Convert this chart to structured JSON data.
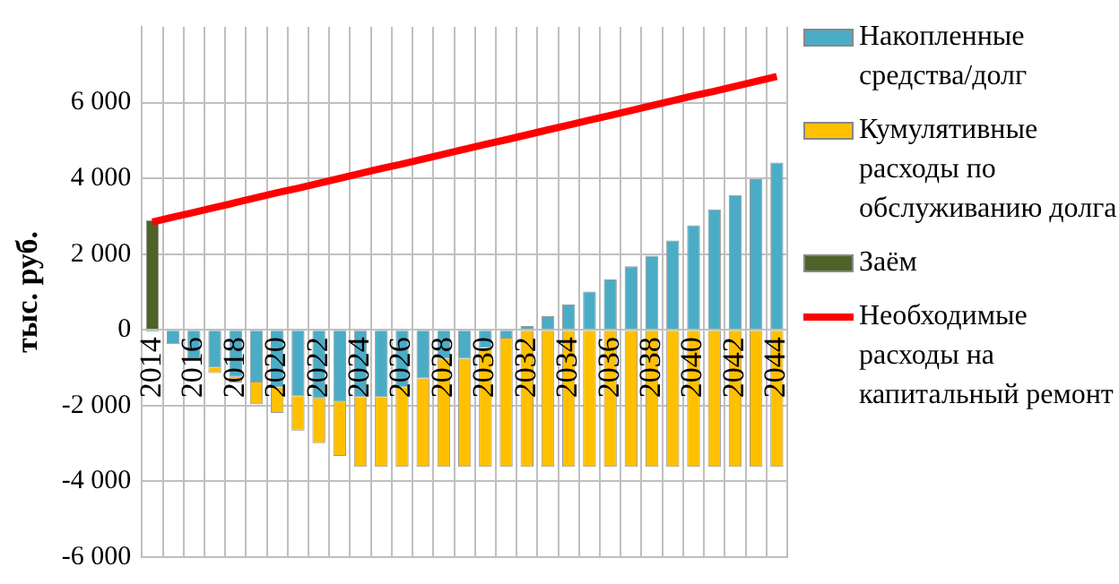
{
  "chart_data": {
    "type": "bar",
    "stacked": true,
    "ylabel": "тыс. руб.",
    "categories": [
      "2014",
      null,
      "2016",
      null,
      "2018",
      null,
      "2020",
      null,
      "2022",
      null,
      "2024",
      null,
      "2026",
      null,
      "2028",
      null,
      "2030",
      null,
      "2032",
      null,
      "2034",
      null,
      "2036",
      null,
      "2038",
      null,
      "2040",
      null,
      "2042",
      null,
      "2044"
    ],
    "series": [
      {
        "name": "Накопленные средства/долг",
        "color": "#4bacc6",
        "values": [
          -50,
          -380,
          -760,
          -990,
          -1240,
          -1390,
          -1520,
          -1750,
          -1810,
          -1900,
          -1770,
          -1770,
          -1520,
          -1280,
          -760,
          -760,
          -480,
          -230,
          100,
          360,
          670,
          1010,
          1330,
          1680,
          1960,
          2360,
          2760,
          3180,
          3560,
          3980,
          4420
        ]
      },
      {
        "name": "Кумулятивные расходы по обслуживанию долга",
        "color": "#ffc000",
        "values": [
          0,
          0,
          0,
          -150,
          -150,
          -570,
          -670,
          -910,
          -1180,
          -1430,
          -1850,
          -1850,
          -2100,
          -2340,
          -2860,
          -2860,
          -3140,
          -3390,
          -3620,
          -3620,
          -3620,
          -3620,
          -3620,
          -3620,
          -3620,
          -3620,
          -3620,
          -3620,
          -3620,
          -3620,
          -3620
        ]
      },
      {
        "name": "Заём",
        "color": "#4f6228",
        "values": [
          2900,
          null,
          null,
          null,
          null,
          null,
          null,
          null,
          null,
          null,
          null,
          null,
          null,
          null,
          null,
          null,
          null,
          null,
          null,
          null,
          null,
          null,
          null,
          null,
          null,
          null,
          null,
          null,
          null,
          null,
          null
        ]
      },
      {
        "name": "Необходимые расходы на капитальный ремонт",
        "type": "line",
        "color": "#ff0000",
        "values": [
          2850,
          2980,
          3100,
          3230,
          3360,
          3490,
          3620,
          3740,
          3870,
          4000,
          4130,
          4260,
          4380,
          4510,
          4640,
          4770,
          4900,
          5020,
          5150,
          5280,
          5410,
          5540,
          5660,
          5790,
          5920,
          6050,
          6180,
          6300,
          6430,
          6560,
          6690
        ]
      }
    ],
    "ylim": [
      -6000,
      8000
    ],
    "yticks": [
      -6000,
      -4000,
      -2000,
      0,
      2000,
      4000,
      6000
    ],
    "grid": true,
    "legend": "right",
    "marker": "none"
  }
}
